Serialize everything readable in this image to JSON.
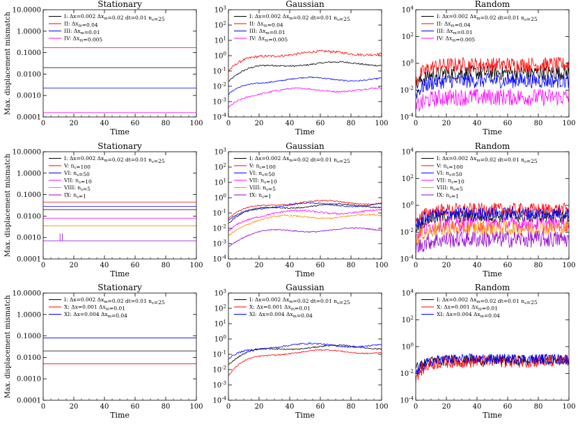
{
  "chart_data": [
    {
      "type": "line",
      "title": "Stationary",
      "xlabel": "Time",
      "ylabel": "Max. displacement mismatch",
      "yscale": "log",
      "xlim": [
        0,
        100
      ],
      "ylim": [
        0.0001,
        10
      ],
      "ytick_labels": [
        "0.0001",
        "0.0010",
        "0.0100",
        "0.1000",
        "1.0000",
        "10.0000"
      ],
      "xtick_labels": [
        "0",
        "20",
        "40",
        "60",
        "80",
        "100"
      ],
      "series": [
        {
          "label": "I: Δx=0.002 Δxm=0.02 dt=0.01 ns=25",
          "color": "#000000",
          "kind": "flat",
          "level": 0.02
        },
        {
          "label": "II: Δxm=0.04",
          "color": "#ff0000",
          "kind": "flat",
          "level": 0.17
        },
        {
          "label": "III: Δxm=0.01",
          "color": "#0000ff",
          "kind": "flat",
          "level": 0.0022
        },
        {
          "label": "IV: Δxm=0.005",
          "color": "#ff00ff",
          "kind": "flat",
          "level": 0.00016
        }
      ]
    },
    {
      "type": "line",
      "title": "Gaussian",
      "xlabel": "Time",
      "ylabel": "",
      "yscale": "log",
      "xlim": [
        0,
        100
      ],
      "ylim": [
        0.0001,
        1000
      ],
      "ytick_labels": [
        "10^-4",
        "10^-3",
        "10^-2",
        "10^-1",
        "10^0",
        "10^1",
        "10^2",
        "10^3"
      ],
      "xtick_labels": [
        "0",
        "20",
        "40",
        "60",
        "80",
        "100"
      ],
      "series": [
        {
          "label": "I: Δx=0.002 Δxm=0.02 dt=0.01 ns=25",
          "color": "#000000",
          "kind": "gauss",
          "level": 0.3,
          "start": 0.02,
          "noise": 0.05
        },
        {
          "label": "II: Δxm=0.04",
          "color": "#ff0000",
          "kind": "gauss",
          "level": 1.5,
          "start": 0.1,
          "noise": 0.08
        },
        {
          "label": "III: Δxm=0.01",
          "color": "#0000ff",
          "kind": "gauss",
          "level": 0.03,
          "start": 0.003,
          "noise": 0.04
        },
        {
          "label": "IV: Δxm=0.005",
          "color": "#ff00ff",
          "kind": "gauss",
          "level": 0.006,
          "start": 0.0004,
          "noise": 0.05
        }
      ]
    },
    {
      "type": "line",
      "title": "Random",
      "xlabel": "Time",
      "ylabel": "",
      "yscale": "log",
      "xlim": [
        0,
        100
      ],
      "ylim": [
        0.0001,
        10000
      ],
      "ytick_labels": [
        "10^-4",
        "10^-2",
        "10^0",
        "10^2",
        "10^4"
      ],
      "xtick_labels": [
        "0",
        "20",
        "40",
        "60",
        "80",
        "100"
      ],
      "series": [
        {
          "label": "I: Δx=0.002 Δxm=0.02 dt=0.01 ns=25",
          "color": "#000000",
          "kind": "random",
          "level": 0.2,
          "start": 0.02,
          "noise": 0.35
        },
        {
          "label": "II: Δxm=0.04",
          "color": "#ff0000",
          "kind": "random",
          "level": 0.8,
          "start": 0.05,
          "noise": 0.35
        },
        {
          "label": "III: Δxm=0.01",
          "color": "#0000ff",
          "kind": "random",
          "level": 0.05,
          "start": 0.005,
          "noise": 0.35
        },
        {
          "label": "IV: Δxm=0.005",
          "color": "#ff00ff",
          "kind": "random",
          "level": 0.003,
          "start": 0.0004,
          "noise": 0.4
        }
      ]
    },
    {
      "type": "line",
      "title": "Stationary",
      "xlabel": "Time",
      "ylabel": "Max. displacement mismatch",
      "yscale": "log",
      "xlim": [
        0,
        100
      ],
      "ylim": [
        0.0001,
        10
      ],
      "ytick_labels": [
        "0.0001",
        "0.0010",
        "0.0100",
        "0.1000",
        "1.0000",
        "10.0000"
      ],
      "xtick_labels": [
        "0",
        "20",
        "40",
        "60",
        "80",
        "100"
      ],
      "series": [
        {
          "label": "I: Δx=0.002 Δxm=0.02 dt=0.01 ns=25",
          "color": "#000000",
          "kind": "flat",
          "level": 0.02
        },
        {
          "label": "V: ns=100",
          "color": "#ff0000",
          "kind": "flat",
          "level": 0.045
        },
        {
          "label": "VI: ns=50",
          "color": "#0000ff",
          "kind": "flat",
          "level": 0.028
        },
        {
          "label": "VII: ns=10",
          "color": "#ff00ff",
          "kind": "flat",
          "level": 0.008
        },
        {
          "label": "VIII: ns=5",
          "color": "#ff8c00",
          "kind": "flat",
          "level": 0.0035
        },
        {
          "label": "IX: ns=1",
          "color": "#9400d3",
          "kind": "flat",
          "level": 0.0007,
          "spikes": [
            11,
            12.5
          ]
        }
      ]
    },
    {
      "type": "line",
      "title": "Gaussian",
      "xlabel": "Time",
      "ylabel": "",
      "yscale": "log",
      "xlim": [
        0,
        100
      ],
      "ylim": [
        0.0001,
        1000
      ],
      "ytick_labels": [
        "10^-4",
        "10^-3",
        "10^-2",
        "10^-1",
        "10^0",
        "10^1",
        "10^2",
        "10^3"
      ],
      "xtick_labels": [
        "0",
        "20",
        "40",
        "60",
        "80",
        "100"
      ],
      "series": [
        {
          "label": "I: Δx=0.002 Δxm=0.02 dt=0.01 ns=25",
          "color": "#000000",
          "kind": "gauss",
          "level": 0.3,
          "start": 0.02,
          "noise": 0.04
        },
        {
          "label": "V: ns=100",
          "color": "#ff0000",
          "kind": "gauss",
          "level": 0.5,
          "start": 0.04,
          "noise": 0.04
        },
        {
          "label": "VI: ns=50",
          "color": "#0000ff",
          "kind": "gauss",
          "level": 0.35,
          "start": 0.03,
          "noise": 0.04
        },
        {
          "label": "VII: ns=10",
          "color": "#ff00ff",
          "kind": "gauss",
          "level": 0.12,
          "start": 0.006,
          "noise": 0.06
        },
        {
          "label": "VIII: ns=5",
          "color": "#ff8c00",
          "kind": "gauss",
          "level": 0.06,
          "start": 0.003,
          "noise": 0.05
        },
        {
          "label": "IX: ns=1",
          "color": "#9400d3",
          "kind": "gauss",
          "level": 0.008,
          "start": 0.0006,
          "noise": 0.04
        }
      ]
    },
    {
      "type": "line",
      "title": "Random",
      "xlabel": "Time",
      "ylabel": "",
      "yscale": "log",
      "xlim": [
        0,
        100
      ],
      "ylim": [
        0.0001,
        10000
      ],
      "ytick_labels": [
        "10^-4",
        "10^-2",
        "10^0",
        "10^2",
        "10^4"
      ],
      "xtick_labels": [
        "0",
        "20",
        "40",
        "60",
        "80",
        "100"
      ],
      "series": [
        {
          "label": "I: Δx=0.002 Δxm=0.02 dt=0.01 ns=25",
          "color": "#000000",
          "kind": "random",
          "level": 0.15,
          "start": 0.02,
          "noise": 0.3
        },
        {
          "label": "V: ns=100",
          "color": "#ff0000",
          "kind": "random",
          "level": 0.5,
          "start": 0.05,
          "noise": 0.3
        },
        {
          "label": "VI: ns=50",
          "color": "#0000ff",
          "kind": "random",
          "level": 0.25,
          "start": 0.03,
          "noise": 0.3
        },
        {
          "label": "VII: ns=10",
          "color": "#ff00ff",
          "kind": "random",
          "level": 0.04,
          "start": 0.005,
          "noise": 0.35
        },
        {
          "label": "VIII: ns=5",
          "color": "#ff8c00",
          "kind": "random",
          "level": 0.02,
          "start": 0.003,
          "noise": 0.35
        },
        {
          "label": "IX: ns=1",
          "color": "#9400d3",
          "kind": "random",
          "level": 0.003,
          "start": 0.0005,
          "noise": 0.4
        }
      ]
    },
    {
      "type": "line",
      "title": "Stationary",
      "xlabel": "Time",
      "ylabel": "Max. displacement mismatch",
      "yscale": "log",
      "xlim": [
        0,
        100
      ],
      "ylim": [
        0.0001,
        10
      ],
      "ytick_labels": [
        "0.0001",
        "0.0010",
        "0.0100",
        "0.1000",
        "1.0000",
        "10.0000"
      ],
      "xtick_labels": [
        "0",
        "20",
        "40",
        "60",
        "80",
        "100"
      ],
      "series": [
        {
          "label": "I: Δx=0.002 Δxm=0.02 dt=0.01 ns=25",
          "color": "#000000",
          "kind": "flat",
          "level": 0.02
        },
        {
          "label": "X: Δx=0.001 Δxm=0.01",
          "color": "#ff0000",
          "kind": "flat",
          "level": 0.005
        },
        {
          "label": "XI: Δx=0.004 Δxm=0.04",
          "color": "#0000ff",
          "kind": "flat",
          "level": 0.08
        }
      ]
    },
    {
      "type": "line",
      "title": "Gaussian",
      "xlabel": "Time",
      "ylabel": "",
      "yscale": "log",
      "xlim": [
        0,
        100
      ],
      "ylim": [
        0.0001,
        1000
      ],
      "ytick_labels": [
        "10^-4",
        "10^-3",
        "10^-2",
        "10^-1",
        "10^0",
        "10^1",
        "10^2",
        "10^3"
      ],
      "xtick_labels": [
        "0",
        "20",
        "40",
        "60",
        "80",
        "100"
      ],
      "series": [
        {
          "label": "I: Δx=0.002 Δxm=0.02 dt=0.01 ns=25",
          "color": "#000000",
          "kind": "gauss",
          "level": 0.3,
          "start": 0.02,
          "noise": 0.04
        },
        {
          "label": "X: Δx=0.001 Δxm=0.01",
          "color": "#ff0000",
          "kind": "gauss",
          "level": 0.15,
          "start": 0.004,
          "noise": 0.04
        },
        {
          "label": "XI: Δx=0.004 Δxm=0.04",
          "color": "#0000ff",
          "kind": "gauss",
          "level": 0.4,
          "start": 0.05,
          "noise": 0.05
        }
      ]
    },
    {
      "type": "line",
      "title": "Random",
      "xlabel": "Time",
      "ylabel": "",
      "yscale": "log",
      "xlim": [
        0,
        100
      ],
      "ylim": [
        0.0001,
        10000
      ],
      "ytick_labels": [
        "10^-4",
        "10^-2",
        "10^0",
        "10^2",
        "10^4"
      ],
      "xtick_labels": [
        "0",
        "20",
        "40",
        "60",
        "80",
        "100"
      ],
      "series": [
        {
          "label": "I: Δx=0.002 Δxm=0.02 dt=0.01 ns=25",
          "color": "#000000",
          "kind": "random",
          "level": 0.1,
          "start": 0.02,
          "noise": 0.25
        },
        {
          "label": "X: Δx=0.001 Δxm=0.01",
          "color": "#ff0000",
          "kind": "random",
          "level": 0.08,
          "start": 0.005,
          "noise": 0.3
        },
        {
          "label": "XI: Δx=0.004 Δxm=0.04",
          "color": "#0000ff",
          "kind": "random",
          "level": 0.12,
          "start": 0.01,
          "noise": 0.25
        }
      ]
    }
  ]
}
